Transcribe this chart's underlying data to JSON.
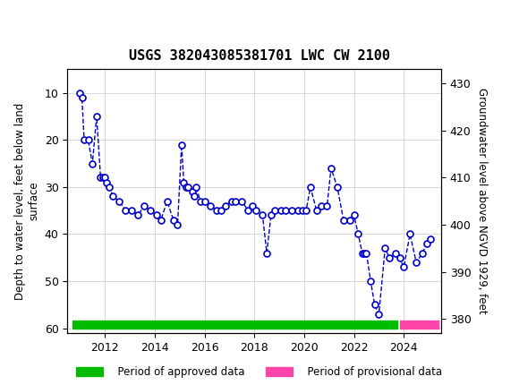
{
  "title": "USGS 382043085381701 LWC CW 2100",
  "ylabel_left": "Depth to water level, feet below land\nsurface",
  "ylabel_right": "Groundwater level above NGVD 1929, feet",
  "ylim_left": [
    61,
    5
  ],
  "ylim_right": [
    377,
    433
  ],
  "yticks_left": [
    10,
    20,
    30,
    40,
    50,
    60
  ],
  "yticks_right": [
    380,
    390,
    400,
    410,
    420,
    430
  ],
  "xlim": [
    2010.5,
    2025.5
  ],
  "xticks": [
    2012,
    2014,
    2016,
    2018,
    2020,
    2022,
    2024
  ],
  "header_color": "#006633",
  "line_color": "#0000CC",
  "marker_face": "white",
  "marker_edge": "#0000CC",
  "approved_color": "#00BB00",
  "provisional_color": "#FF44AA",
  "approved_start": 2010.7,
  "approved_end": 2023.75,
  "provisional_start": 2023.85,
  "provisional_end": 2025.4,
  "bar_y": 59.2,
  "bar_height": 1.6,
  "data_x": [
    2011.0,
    2011.08,
    2011.17,
    2011.33,
    2011.5,
    2011.67,
    2011.83,
    2011.92,
    2012.0,
    2012.08,
    2012.17,
    2012.33,
    2012.58,
    2012.83,
    2013.08,
    2013.33,
    2013.58,
    2013.83,
    2014.08,
    2014.25,
    2014.5,
    2014.75,
    2014.92,
    2015.08,
    2015.17,
    2015.25,
    2015.33,
    2015.5,
    2015.58,
    2015.67,
    2015.83,
    2016.0,
    2016.25,
    2016.5,
    2016.67,
    2016.83,
    2017.08,
    2017.25,
    2017.5,
    2017.75,
    2017.92,
    2018.08,
    2018.33,
    2018.5,
    2018.67,
    2018.83,
    2019.08,
    2019.25,
    2019.5,
    2019.75,
    2019.92,
    2020.08,
    2020.25,
    2020.5,
    2020.67,
    2020.92,
    2021.08,
    2021.33,
    2021.58,
    2021.83,
    2022.0,
    2022.17,
    2022.33,
    2022.42,
    2022.5,
    2022.67,
    2022.83,
    2023.0,
    2023.25,
    2023.42,
    2023.67,
    2023.83,
    2024.0,
    2024.25,
    2024.5,
    2024.75,
    2024.92,
    2025.08
  ],
  "data_y": [
    10,
    11,
    20,
    20,
    25,
    15,
    28,
    28,
    28,
    29,
    30,
    32,
    33,
    35,
    35,
    36,
    34,
    35,
    36,
    37,
    33,
    37,
    38,
    21,
    29,
    30,
    30,
    31,
    32,
    30,
    33,
    33,
    34,
    35,
    35,
    34,
    33,
    33,
    33,
    35,
    34,
    35,
    36,
    44,
    36,
    35,
    35,
    35,
    35,
    35,
    35,
    35,
    30,
    35,
    34,
    34,
    26,
    30,
    37,
    37,
    36,
    40,
    44,
    44,
    44,
    50,
    55,
    57,
    43,
    45,
    44,
    45,
    47,
    40,
    46,
    44,
    42,
    41
  ]
}
